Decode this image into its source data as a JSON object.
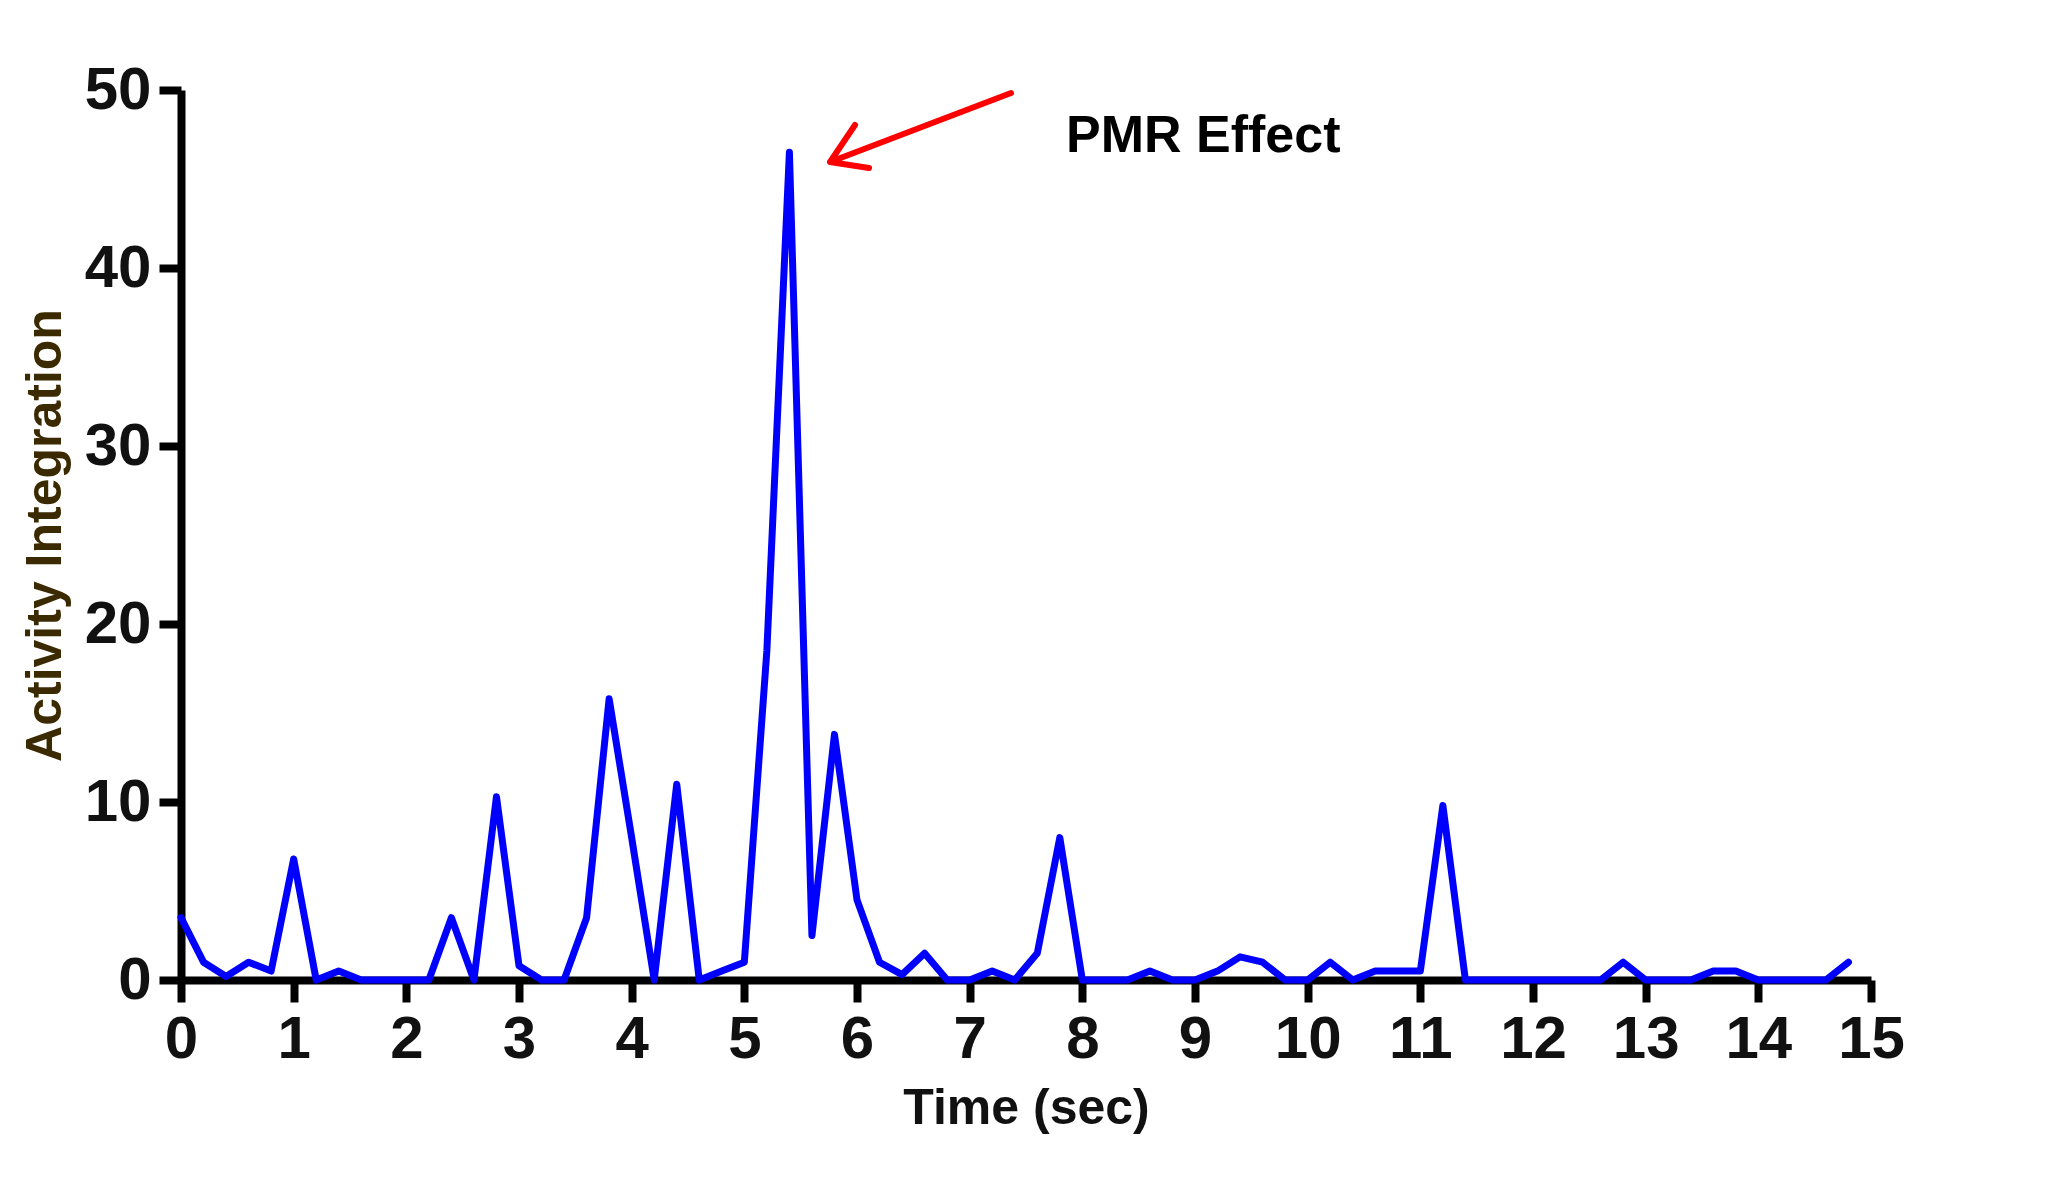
{
  "chart_data": {
    "type": "line",
    "xlabel": "Time (sec)",
    "ylabel": "Activity Integration",
    "x": [
      0,
      0.2,
      0.4,
      0.6,
      0.8,
      1,
      1.2,
      1.4,
      1.6,
      1.8,
      2,
      2.2,
      2.4,
      2.6,
      2.8,
      3,
      3.2,
      3.4,
      3.6,
      3.8,
      4,
      4.2,
      4.4,
      4.6,
      4.8,
      5,
      5.2,
      5.4,
      5.6,
      5.8,
      6,
      6.2,
      6.4,
      6.6,
      6.8,
      7,
      7.2,
      7.4,
      7.6,
      7.8,
      8,
      8.2,
      8.4,
      8.6,
      8.8,
      9,
      9.2,
      9.4,
      9.6,
      9.8,
      10,
      10.2,
      10.4,
      10.6,
      10.8,
      11,
      11.2,
      11.4,
      11.6,
      11.8,
      12,
      12.2,
      12.4,
      12.6,
      12.8,
      13,
      13.2,
      13.4,
      13.6,
      13.8,
      14,
      14.2,
      14.4,
      14.6,
      14.8
    ],
    "series": [
      {
        "color": "#0000ff",
        "values": [
          3.5,
          1,
          0.2,
          1,
          0.5,
          6.8,
          0,
          0.5,
          0,
          0,
          0,
          0,
          3.5,
          0,
          10.3,
          0.8,
          0,
          0,
          3.5,
          15.8,
          8,
          0,
          11,
          0,
          0.5,
          1,
          18.5,
          46.5,
          2.5,
          13.8,
          4.5,
          1,
          0.3,
          1.5,
          0,
          0,
          0.5,
          0,
          1.5,
          8,
          0,
          0,
          0,
          0.5,
          0,
          0,
          0.5,
          1.3,
          1,
          0,
          0,
          1,
          0,
          0.5,
          0.5,
          0.5,
          9.8,
          0,
          0,
          0,
          0,
          0,
          0,
          0,
          1,
          0,
          0,
          0,
          0.5,
          0.5,
          0,
          0,
          0,
          0,
          1
        ]
      }
    ],
    "xlim": [
      0,
      15
    ],
    "xticks": [
      0,
      1,
      2,
      3,
      4,
      5,
      6,
      7,
      8,
      9,
      10,
      11,
      12,
      13,
      14,
      15
    ],
    "ylim": [
      0,
      50
    ],
    "yticks": [
      0,
      10,
      20,
      30,
      40,
      50
    ],
    "grid": false,
    "marker": "none",
    "line_style": "solid",
    "annotations": [
      "PMR Effect"
    ]
  }
}
